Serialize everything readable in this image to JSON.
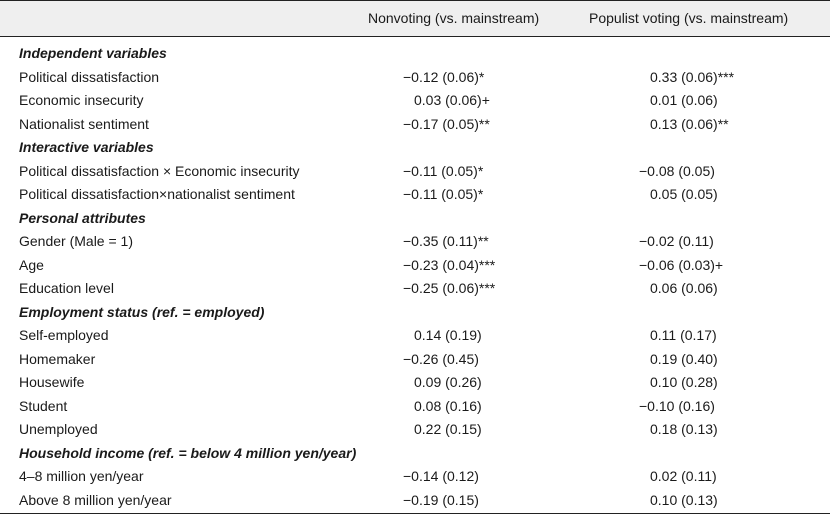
{
  "table": {
    "columns": [
      "Nonvoting (vs. mainstream)",
      "Populist voting (vs. mainstream)"
    ],
    "rows": [
      {
        "type": "section",
        "label": "Independent variables",
        "v1": "",
        "v2": ""
      },
      {
        "type": "data",
        "label": "Political dissatisfaction",
        "v1": "−0.12 (0.06)*",
        "v2": "0.33 (0.06)***"
      },
      {
        "type": "data",
        "label": "Economic insecurity",
        "v1": "0.03 (0.06)+",
        "v2": "0.01 (0.06)"
      },
      {
        "type": "data",
        "label": "Nationalist sentiment",
        "v1": "−0.17 (0.05)**",
        "v2": "0.13 (0.06)**"
      },
      {
        "type": "section",
        "label": "Interactive variables",
        "v1": "",
        "v2": ""
      },
      {
        "type": "data",
        "label": "Political dissatisfaction × Economic insecurity",
        "v1": "−0.11 (0.05)*",
        "v2": "−0.08 (0.05)"
      },
      {
        "type": "data",
        "label": "Political dissatisfaction×nationalist sentiment",
        "v1": "−0.11 (0.05)*",
        "v2": "0.05 (0.05)"
      },
      {
        "type": "section",
        "label": "Personal attributes",
        "v1": "",
        "v2": ""
      },
      {
        "type": "data",
        "label": "Gender (Male = 1)",
        "v1": "−0.35 (0.11)**",
        "v2": "−0.02 (0.11)"
      },
      {
        "type": "data",
        "label": "Age",
        "v1": "−0.23 (0.04)***",
        "v2": "−0.06 (0.03)+"
      },
      {
        "type": "data",
        "label": "Education level",
        "v1": "−0.25 (0.06)***",
        "v2": "0.06 (0.06)"
      },
      {
        "type": "section",
        "label": "Employment status (ref. = employed)",
        "v1": "",
        "v2": ""
      },
      {
        "type": "data",
        "label": "Self-employed",
        "v1": "0.14 (0.19)",
        "v2": "0.11 (0.17)"
      },
      {
        "type": "data",
        "label": "Homemaker",
        "v1": "−0.26 (0.45)",
        "v2": "0.19 (0.40)"
      },
      {
        "type": "data",
        "label": "Housewife",
        "v1": "0.09 (0.26)",
        "v2": "0.10 (0.28)"
      },
      {
        "type": "data",
        "label": "Student",
        "v1": "0.08 (0.16)",
        "v2": "−0.10 (0.16)"
      },
      {
        "type": "data",
        "label": "Unemployed",
        "v1": "0.22 (0.15)",
        "v2": "0.18 (0.13)"
      },
      {
        "type": "section",
        "label": "Household income (ref. = below 4 million yen/year)",
        "v1": "",
        "v2": ""
      },
      {
        "type": "data",
        "label": "4–8 million yen/year",
        "v1": "−0.14 (0.12)",
        "v2": "0.02 (0.11)"
      },
      {
        "type": "data",
        "label": "Above 8 million yen/year",
        "v1": "−0.19 (0.15)",
        "v2": "0.10 (0.13)"
      }
    ]
  }
}
